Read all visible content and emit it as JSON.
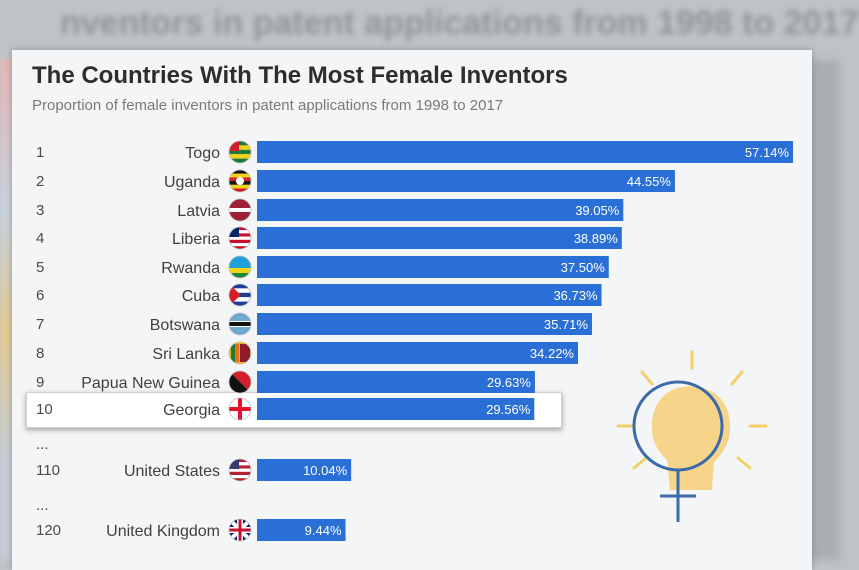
{
  "background_title": "nventors in patent applications from 1998 to 2017",
  "title": "The Countries With The Most Female Inventors",
  "subtitle": "Proportion of female inventors in patent applications from 1998 to 2017",
  "colors": {
    "bar": "#2a6fd6",
    "label": "#ffffff",
    "text": "#404040"
  },
  "chart_data": {
    "type": "bar",
    "orientation": "horizontal",
    "unit": "%",
    "rows": [
      {
        "rank": "1",
        "country": "Togo",
        "value": 57.14,
        "label": "57.14%",
        "flag": "togo-flag-icon"
      },
      {
        "rank": "2",
        "country": "Uganda",
        "value": 44.55,
        "label": "44.55%",
        "flag": "uganda-flag-icon"
      },
      {
        "rank": "3",
        "country": "Latvia",
        "value": 39.05,
        "label": "39.05%",
        "flag": "latvia-flag-icon"
      },
      {
        "rank": "4",
        "country": "Liberia",
        "value": 38.89,
        "label": "38.89%",
        "flag": "liberia-flag-icon"
      },
      {
        "rank": "5",
        "country": "Rwanda",
        "value": 37.5,
        "label": "37.50%",
        "flag": "rwanda-flag-icon"
      },
      {
        "rank": "6",
        "country": "Cuba",
        "value": 36.73,
        "label": "36.73%",
        "flag": "cuba-flag-icon"
      },
      {
        "rank": "7",
        "country": "Botswana",
        "value": 35.71,
        "label": "35.71%",
        "flag": "botswana-flag-icon"
      },
      {
        "rank": "8",
        "country": "Sri Lanka",
        "value": 34.22,
        "label": "34.22%",
        "flag": "sri-lanka-flag-icon"
      },
      {
        "rank": "9",
        "country": "Papua New Guinea",
        "value": 29.63,
        "label": "29.63%",
        "flag": "papua-new-guinea-flag-icon"
      },
      {
        "rank": "10",
        "country": "Georgia",
        "value": 29.56,
        "label": "29.56%",
        "flag": "georgia-flag-icon",
        "highlighted": true
      },
      {
        "rank": "...",
        "country": "",
        "value": null,
        "label": "",
        "flag": ""
      },
      {
        "rank": "110",
        "country": "United States",
        "value": 10.04,
        "label": "10.04%",
        "flag": "united-states-flag-icon"
      },
      {
        "rank": "...",
        "country": "",
        "value": null,
        "label": "",
        "flag": ""
      },
      {
        "rank": "120",
        "country": "United Kingdom",
        "value": 9.44,
        "label": "9.44%",
        "flag": "united-kingdom-flag-icon"
      }
    ],
    "xlim": [
      0,
      57.14
    ],
    "grid": false,
    "legend": "none"
  }
}
